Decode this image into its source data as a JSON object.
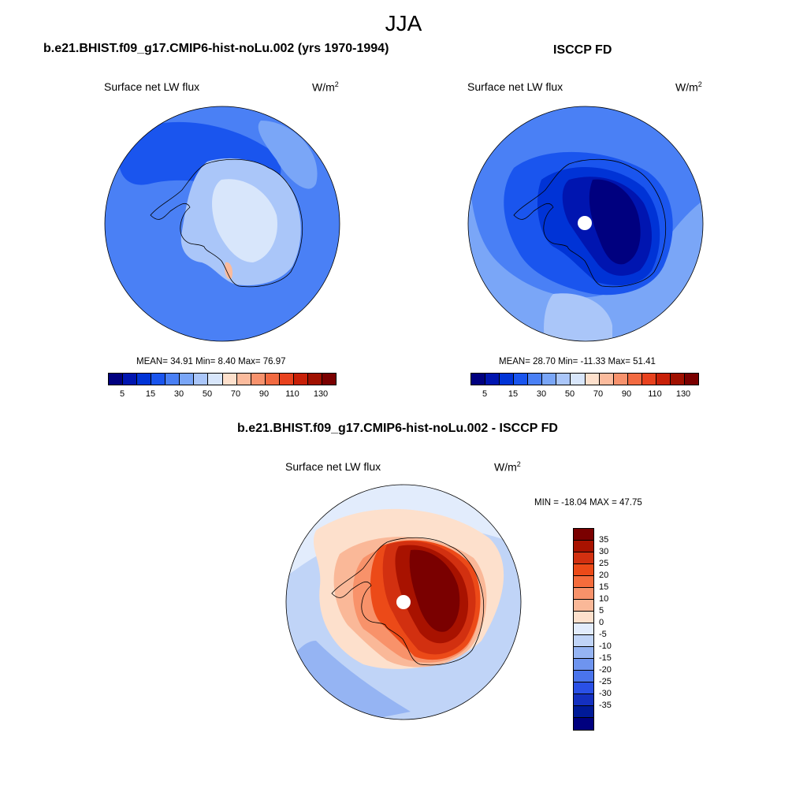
{
  "season": "JJA",
  "panels": [
    {
      "title": "b.e21.BHIST.f09_g17.CMIP6-hist-noLu.002 (yrs 1970-1994)",
      "variable": "Surface net LW flux",
      "units_base": "W/m",
      "units_exp": "2",
      "stats": "MEAN=  34.91  Min=   8.40  Max=  76.97",
      "stats_values": {
        "mean": 34.91,
        "min": 8.4,
        "max": 76.97
      }
    },
    {
      "title": "ISCCP FD",
      "variable": "Surface net LW flux",
      "units_base": "W/m",
      "units_exp": "2",
      "stats": "MEAN=  28.70  Min= -11.33  Max=  51.41",
      "stats_values": {
        "mean": 28.7,
        "min": -11.33,
        "max": 51.41
      }
    },
    {
      "title": "b.e21.BHIST.f09_g17.CMIP6-hist-noLu.002 - ISCCP FD",
      "variable": "Surface net LW flux",
      "units_base": "W/m",
      "units_exp": "2",
      "stats": "MIN = -18.04 MAX =  47.75",
      "stats_values": {
        "min": -18.04,
        "max": 47.75
      }
    }
  ],
  "colorbar_main": {
    "colors": [
      "#00007f",
      "#0015b0",
      "#0033d6",
      "#1a55ee",
      "#4a80f5",
      "#7aa6f7",
      "#aac6f9",
      "#d8e6fb",
      "#fde0cc",
      "#fbbb9d",
      "#f7926d",
      "#f26a41",
      "#e8421e",
      "#c82008",
      "#a01000",
      "#7a0000"
    ],
    "tick_labels": [
      "5",
      "15",
      "30",
      "50",
      "70",
      "90",
      "110",
      "130"
    ]
  },
  "colorbar_diff": {
    "colors": [
      "#7a0000",
      "#a81200",
      "#d23010",
      "#ec4a18",
      "#f56c3c",
      "#f8926a",
      "#fab898",
      "#fde0cc",
      "#e2ecfc",
      "#c0d4f7",
      "#95b4f3",
      "#6e94ef",
      "#4a74ec",
      "#2a50e6",
      "#1430c0",
      "#001a98",
      "#00007f"
    ],
    "tick_labels": [
      "35",
      "30",
      "25",
      "20",
      "15",
      "10",
      "5",
      "0",
      "-5",
      "-10",
      "-15",
      "-20",
      "-25",
      "-30",
      "-35"
    ]
  },
  "map_fields": {
    "model": {
      "ocean_base": "#4a80f5",
      "band_colors": [
        "#1a55ee",
        "#7aa6f7",
        "#aac6f9",
        "#d8e6fb",
        "#fbbb9d"
      ]
    },
    "obs": {
      "ocean_base": "#7aa6f7",
      "band_colors": [
        "#4a80f5",
        "#1a55ee",
        "#0033d6",
        "#0015b0",
        "#00007f",
        "#aac6f9"
      ]
    },
    "diff": {
      "ocean_base": "#c0d4f7",
      "band_colors": [
        "#e2ecfc",
        "#fde0cc",
        "#fab898",
        "#f8926a",
        "#ec4a18",
        "#d23010",
        "#a81200",
        "#7a0000",
        "#95b4f3"
      ]
    }
  }
}
